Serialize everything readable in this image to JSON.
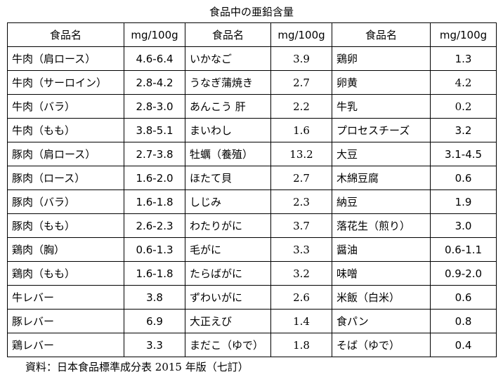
{
  "title": "食品中の亜鉛含量",
  "table": {
    "header": [
      "食品名",
      "mg/100g",
      "食品名",
      "mg/100g",
      "食品名",
      "mg/100g"
    ],
    "rows": [
      [
        "牛肉（肩ロース）",
        "4.6-6.4",
        "いかなご",
        "3.9",
        "鶏卵",
        "1.3"
      ],
      [
        "牛肉（サーロイン）",
        "2.8-4.2",
        "うなぎ蒲焼き",
        "2.7",
        "卵黄",
        "4.2"
      ],
      [
        "牛肉（バラ）",
        "2.8-3.0",
        "あんこう 肝",
        "2.2",
        "牛乳",
        "0.2"
      ],
      [
        "牛肉（もも）",
        "3.8-5.1",
        "まいわし",
        "1.6",
        "プロセスチーズ",
        "3.2"
      ],
      [
        "豚肉（肩ロース）",
        "2.7-3.8",
        "牡蠣（養殖）",
        "13.2",
        "大豆",
        "3.1-4.5"
      ],
      [
        "豚肉（ロース）",
        "1.6-2.0",
        "ほたて貝",
        "2.7",
        "木綿豆腐",
        "0.6"
      ],
      [
        "豚肉（バラ）",
        "1.6-1.8",
        "しじみ",
        "2.3",
        "納豆",
        "1.9"
      ],
      [
        "豚肉（もも）",
        "2.6-2.3",
        "わたりがに",
        "3.7",
        "落花生（煎り）",
        "3.0"
      ],
      [
        "鶏肉（胸）",
        "0.6-1.3",
        "毛がに",
        "3.3",
        "醤油",
        "0.6-1.1"
      ],
      [
        "鶏肉（もも）",
        "1.6-1.8",
        "たらばがに",
        "3.2",
        "味噌",
        "0.9-2.0"
      ],
      [
        "牛レバー",
        "3.8",
        "ずわいがに",
        "2.6",
        "米飯（白米）",
        "0.6"
      ],
      [
        "豚レバー",
        "6.9",
        "大正えび",
        "1.4",
        "食パン",
        "0.8"
      ],
      [
        "鶏レバー",
        "3.3",
        "まだこ（ゆで）",
        "1.8",
        "そば（ゆで）",
        "0.4"
      ]
    ]
  },
  "source": "資料：日本食品標準成分表 2015 年版（七訂）"
}
